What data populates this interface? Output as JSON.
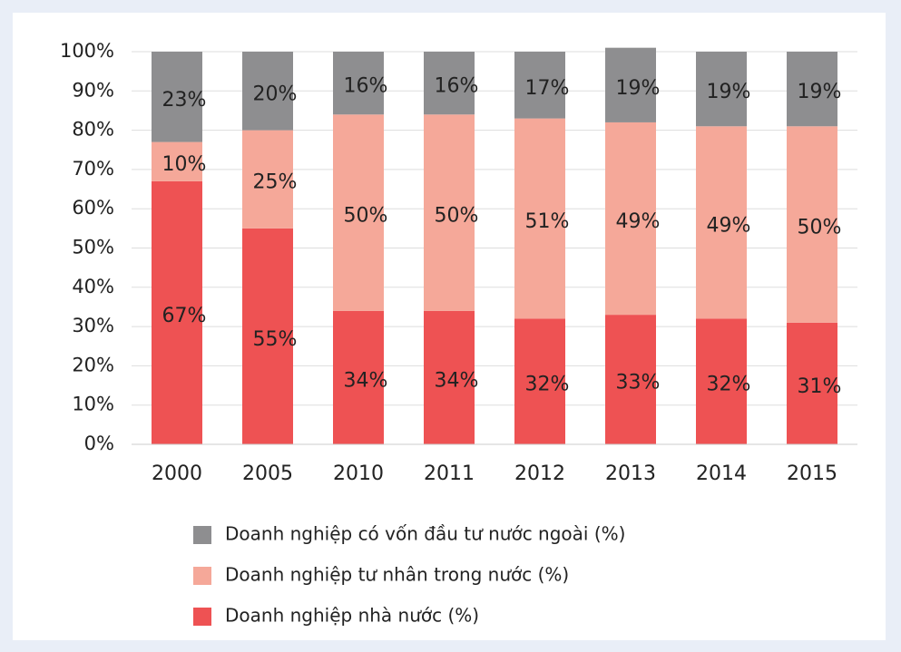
{
  "chart_data": {
    "type": "stacked_bar",
    "categories": [
      "2000",
      "2005",
      "2010",
      "2011",
      "2012",
      "2013",
      "2014",
      "2015"
    ],
    "series": [
      {
        "name": "Doanh nghiệp nhà nước (%)",
        "color": "#ee5253",
        "values": [
          67,
          55,
          34,
          34,
          32,
          33,
          32,
          31
        ],
        "value_labels": [
          "67%",
          "55%",
          "34%",
          "34%",
          "32%",
          "33%",
          "32%",
          "31%"
        ]
      },
      {
        "name": "Doanh nghiệp tư nhân trong nước (%)",
        "color": "#f5a899",
        "values": [
          10,
          25,
          50,
          50,
          51,
          49,
          49,
          50
        ],
        "value_labels": [
          "10%",
          "25%",
          "50%",
          "50%",
          "51%",
          "49%",
          "49%",
          "50%"
        ]
      },
      {
        "name": "Doanh nghiệp có vốn đầu tư nước ngoài (%)",
        "color": "#8e8e90",
        "values": [
          23,
          20,
          16,
          16,
          17,
          19,
          19,
          19
        ],
        "value_labels": [
          "23%",
          "20%",
          "16%",
          "16%",
          "17%",
          "19%",
          "19%",
          "19%"
        ]
      }
    ],
    "ylim": [
      0,
      100
    ],
    "yticks": [
      {
        "value": 0,
        "label": "0%"
      },
      {
        "value": 10,
        "label": "10%"
      },
      {
        "value": 20,
        "label": "20%"
      },
      {
        "value": 30,
        "label": "30%"
      },
      {
        "value": 40,
        "label": "40%"
      },
      {
        "value": 50,
        "label": "50%"
      },
      {
        "value": 60,
        "label": "60%"
      },
      {
        "value": 70,
        "label": "70%"
      },
      {
        "value": 80,
        "label": "80%"
      },
      {
        "value": 90,
        "label": "90%"
      },
      {
        "value": 100,
        "label": "100%"
      }
    ],
    "grid": true
  }
}
